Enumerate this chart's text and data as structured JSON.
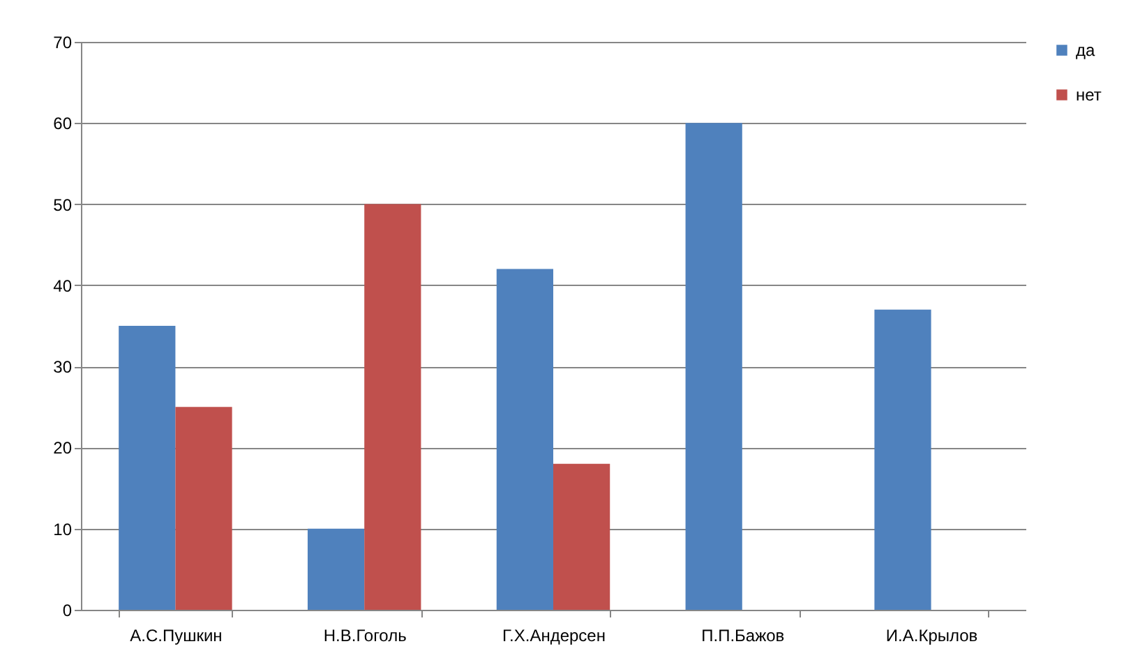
{
  "chart_data": {
    "type": "bar",
    "categories": [
      "А.С.Пушкин",
      "Н.В.Гоголь",
      "Г.Х.Андерсен",
      "П.П.Бажов",
      "И.А.Крылов"
    ],
    "series": [
      {
        "name": "да",
        "color": "#4f81bd",
        "values": [
          35,
          10,
          42,
          60,
          37
        ]
      },
      {
        "name": "нет",
        "color": "#c0504d",
        "values": [
          25,
          50,
          18,
          0,
          0
        ]
      }
    ],
    "ylim": [
      0,
      70
    ],
    "yticks": [
      0,
      10,
      20,
      30,
      40,
      50,
      60,
      70
    ],
    "grid": "y",
    "legend": "right"
  }
}
